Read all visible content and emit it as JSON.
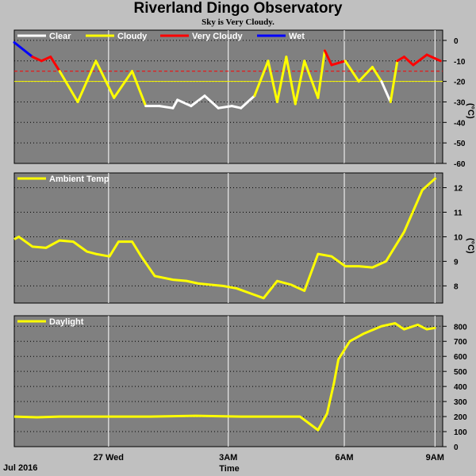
{
  "page": {
    "title": "Riverland Dingo Observatory",
    "subtitle": "Sky is Very Cloudy.",
    "date_label": "Jul 2016",
    "x_axis_title": "Time"
  },
  "colors": {
    "background": "#c0c0c0",
    "plot_bg": "#808080",
    "grid": "#ffffff",
    "clear": "#ffffff",
    "cloudy": "#ffff00",
    "very_cloudy": "#ff0000",
    "wet": "#0000ff",
    "ambient": "#ffff00",
    "daylight": "#ffff00",
    "threshold_very_cloudy": "#ff0000",
    "threshold_cloudy": "#ffff00"
  },
  "chart_data": [
    {
      "type": "line",
      "name": "sky-temperature",
      "legend": [
        "Clear",
        "Cloudy",
        "Very Cloudy",
        "Wet"
      ],
      "ylabel": "(°C)",
      "ylim": [
        -60,
        5
      ],
      "yticks": [
        0,
        -10,
        -20,
        -30,
        -40,
        -50,
        -60
      ],
      "x_ticks": [
        "27 Wed",
        "3AM",
        "6AM",
        "9AM"
      ],
      "x": [
        0.0,
        0.4,
        0.6,
        0.8,
        1.0,
        1.4,
        1.8,
        2.2,
        2.6,
        2.9,
        3.2,
        3.5,
        3.6,
        3.9,
        4.2,
        4.5,
        4.8,
        5.0,
        5.3,
        5.6,
        5.8,
        6.0,
        6.2,
        6.4,
        6.7,
        6.85,
        7.0,
        7.3,
        7.6,
        7.9,
        8.1,
        8.3,
        8.45,
        8.6,
        8.8,
        9.1,
        9.4
      ],
      "values": [
        -1,
        -8,
        -10,
        -8,
        -15,
        -30,
        -10,
        -28,
        -15,
        -32,
        -32,
        -33,
        -29,
        -32,
        -27,
        -33,
        -32,
        -33,
        -27,
        -10,
        -30,
        -8,
        -31,
        -10,
        -28,
        -5,
        -12,
        -10,
        -20,
        -13,
        -20,
        -30,
        -10,
        -8,
        -12,
        -7,
        -10
      ],
      "threshold_lines": [
        -15,
        -20
      ]
    },
    {
      "type": "line",
      "name": "ambient-temperature",
      "legend": [
        "Ambient Temp"
      ],
      "ylabel": "(°C)",
      "ylim": [
        7.3,
        12.6
      ],
      "yticks": [
        8,
        9,
        10,
        11,
        12
      ],
      "x": [
        0.0,
        0.1,
        0.4,
        0.7,
        1.0,
        1.3,
        1.6,
        1.8,
        2.1,
        2.3,
        2.6,
        2.8,
        3.1,
        3.5,
        3.8,
        4.05,
        4.3,
        4.6,
        4.9,
        5.2,
        5.5,
        5.8,
        6.1,
        6.4,
        6.7,
        7.0,
        7.3,
        7.6,
        7.9,
        8.2,
        8.6,
        9.0,
        9.3
      ],
      "values": [
        9.9,
        10.0,
        9.6,
        9.55,
        9.85,
        9.8,
        9.4,
        9.3,
        9.2,
        9.8,
        9.8,
        9.2,
        8.4,
        8.25,
        8.2,
        8.1,
        8.05,
        8.0,
        7.9,
        7.7,
        7.5,
        8.2,
        8.05,
        7.8,
        9.3,
        9.2,
        8.8,
        8.8,
        8.75,
        9.0,
        10.2,
        11.9,
        12.4
      ]
    },
    {
      "type": "line",
      "name": "daylight",
      "legend": [
        "Daylight"
      ],
      "ylim": [
        0,
        870
      ],
      "yticks": [
        0,
        100,
        200,
        300,
        400,
        500,
        600,
        700,
        800
      ],
      "x": [
        0.0,
        0.5,
        1.0,
        2.0,
        3.0,
        4.0,
        5.0,
        6.0,
        6.3,
        6.7,
        6.9,
        7.05,
        7.15,
        7.4,
        7.7,
        8.1,
        8.4,
        8.6,
        8.9,
        9.1,
        9.3
      ],
      "values": [
        200,
        195,
        200,
        200,
        200,
        205,
        200,
        200,
        200,
        110,
        220,
        420,
        580,
        700,
        750,
        800,
        820,
        780,
        810,
        780,
        790
      ]
    }
  ]
}
